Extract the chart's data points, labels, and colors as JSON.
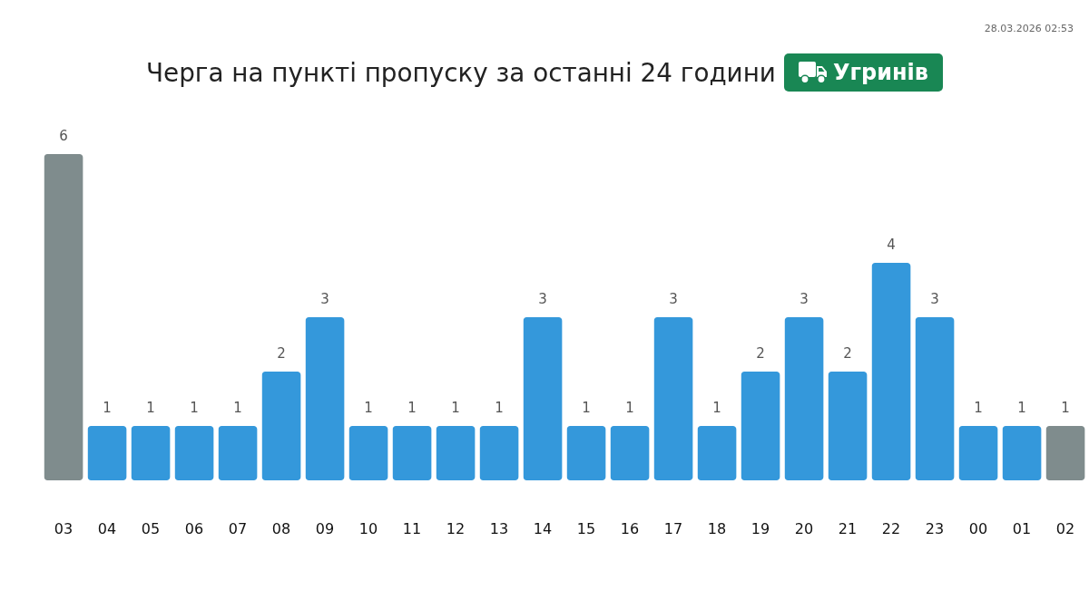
{
  "chart_data": {
    "type": "bar",
    "title": "Черга на пункті пропуску за останні 24 години",
    "subtitle": "Угринів",
    "annotations": [
      "28.03.2026 02:53"
    ],
    "categories": [
      "03",
      "04",
      "05",
      "06",
      "07",
      "08",
      "09",
      "10",
      "11",
      "12",
      "13",
      "14",
      "15",
      "16",
      "17",
      "18",
      "19",
      "20",
      "21",
      "22",
      "23",
      "00",
      "01",
      "02"
    ],
    "values": [
      6,
      1,
      1,
      1,
      1,
      2,
      3,
      1,
      1,
      1,
      1,
      3,
      1,
      1,
      3,
      1,
      2,
      3,
      2,
      4,
      3,
      1,
      1,
      1
    ],
    "colors": [
      "#7f8c8d",
      "#3498db",
      "#3498db",
      "#3498db",
      "#3498db",
      "#3498db",
      "#3498db",
      "#3498db",
      "#3498db",
      "#3498db",
      "#3498db",
      "#3498db",
      "#3498db",
      "#3498db",
      "#3498db",
      "#3498db",
      "#3498db",
      "#3498db",
      "#3498db",
      "#3498db",
      "#3498db",
      "#3498db",
      "#3498db",
      "#7f8c8d"
    ],
    "data_labels": true,
    "tick_labels": "x"
  }
}
